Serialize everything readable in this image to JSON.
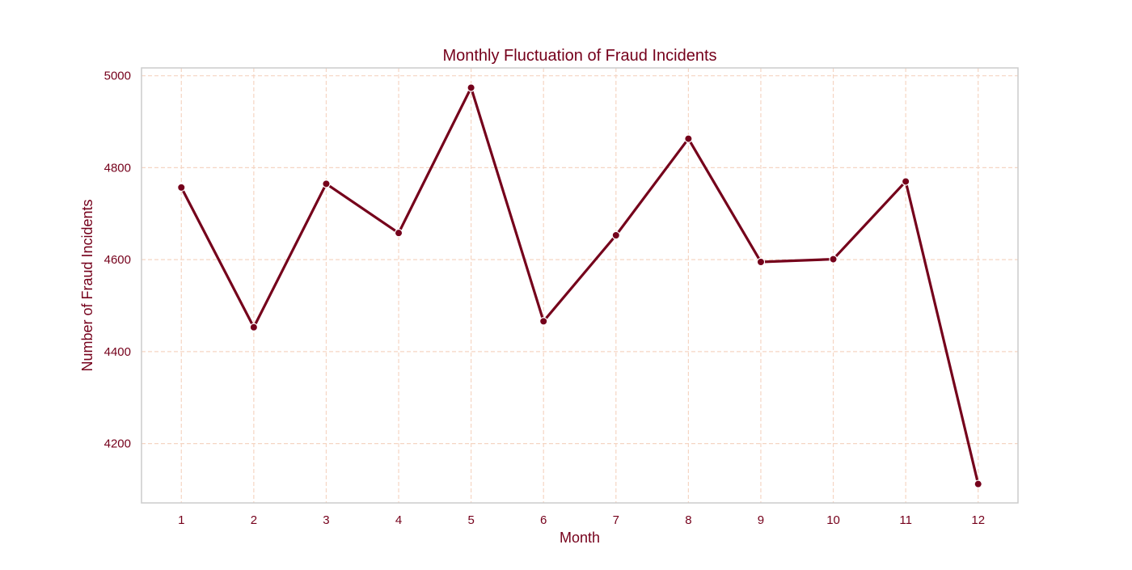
{
  "chart_data": {
    "type": "line",
    "title": "Monthly Fluctuation of Fraud Incidents",
    "xlabel": "Month",
    "ylabel": "Number of Fraud Incidents",
    "x": [
      1,
      2,
      3,
      4,
      5,
      6,
      7,
      8,
      9,
      10,
      11,
      12
    ],
    "x_tick_labels": [
      "1",
      "2",
      "3",
      "4",
      "5",
      "6",
      "7",
      "8",
      "9",
      "10",
      "11",
      "12"
    ],
    "y": [
      4757,
      4453,
      4765,
      4658,
      4974,
      4466,
      4653,
      4863,
      4595,
      4601,
      4770,
      4112
    ],
    "y_ticks": [
      4200,
      4400,
      4600,
      4800,
      5000
    ],
    "y_tick_labels": [
      "4200",
      "4400",
      "4600",
      "4800",
      "5000"
    ],
    "xlim": [
      0.45,
      12.55
    ],
    "ylim": [
      4071,
      5017
    ],
    "grid": true,
    "grid_style": "dashed",
    "legend": "none",
    "markers": true
  },
  "colors": {
    "line": "#75001b",
    "marker": "#75001b",
    "text": "#75001b",
    "grid": "#f5d5c3",
    "axes_border": "#cccccc",
    "background": "#ffffff"
  }
}
